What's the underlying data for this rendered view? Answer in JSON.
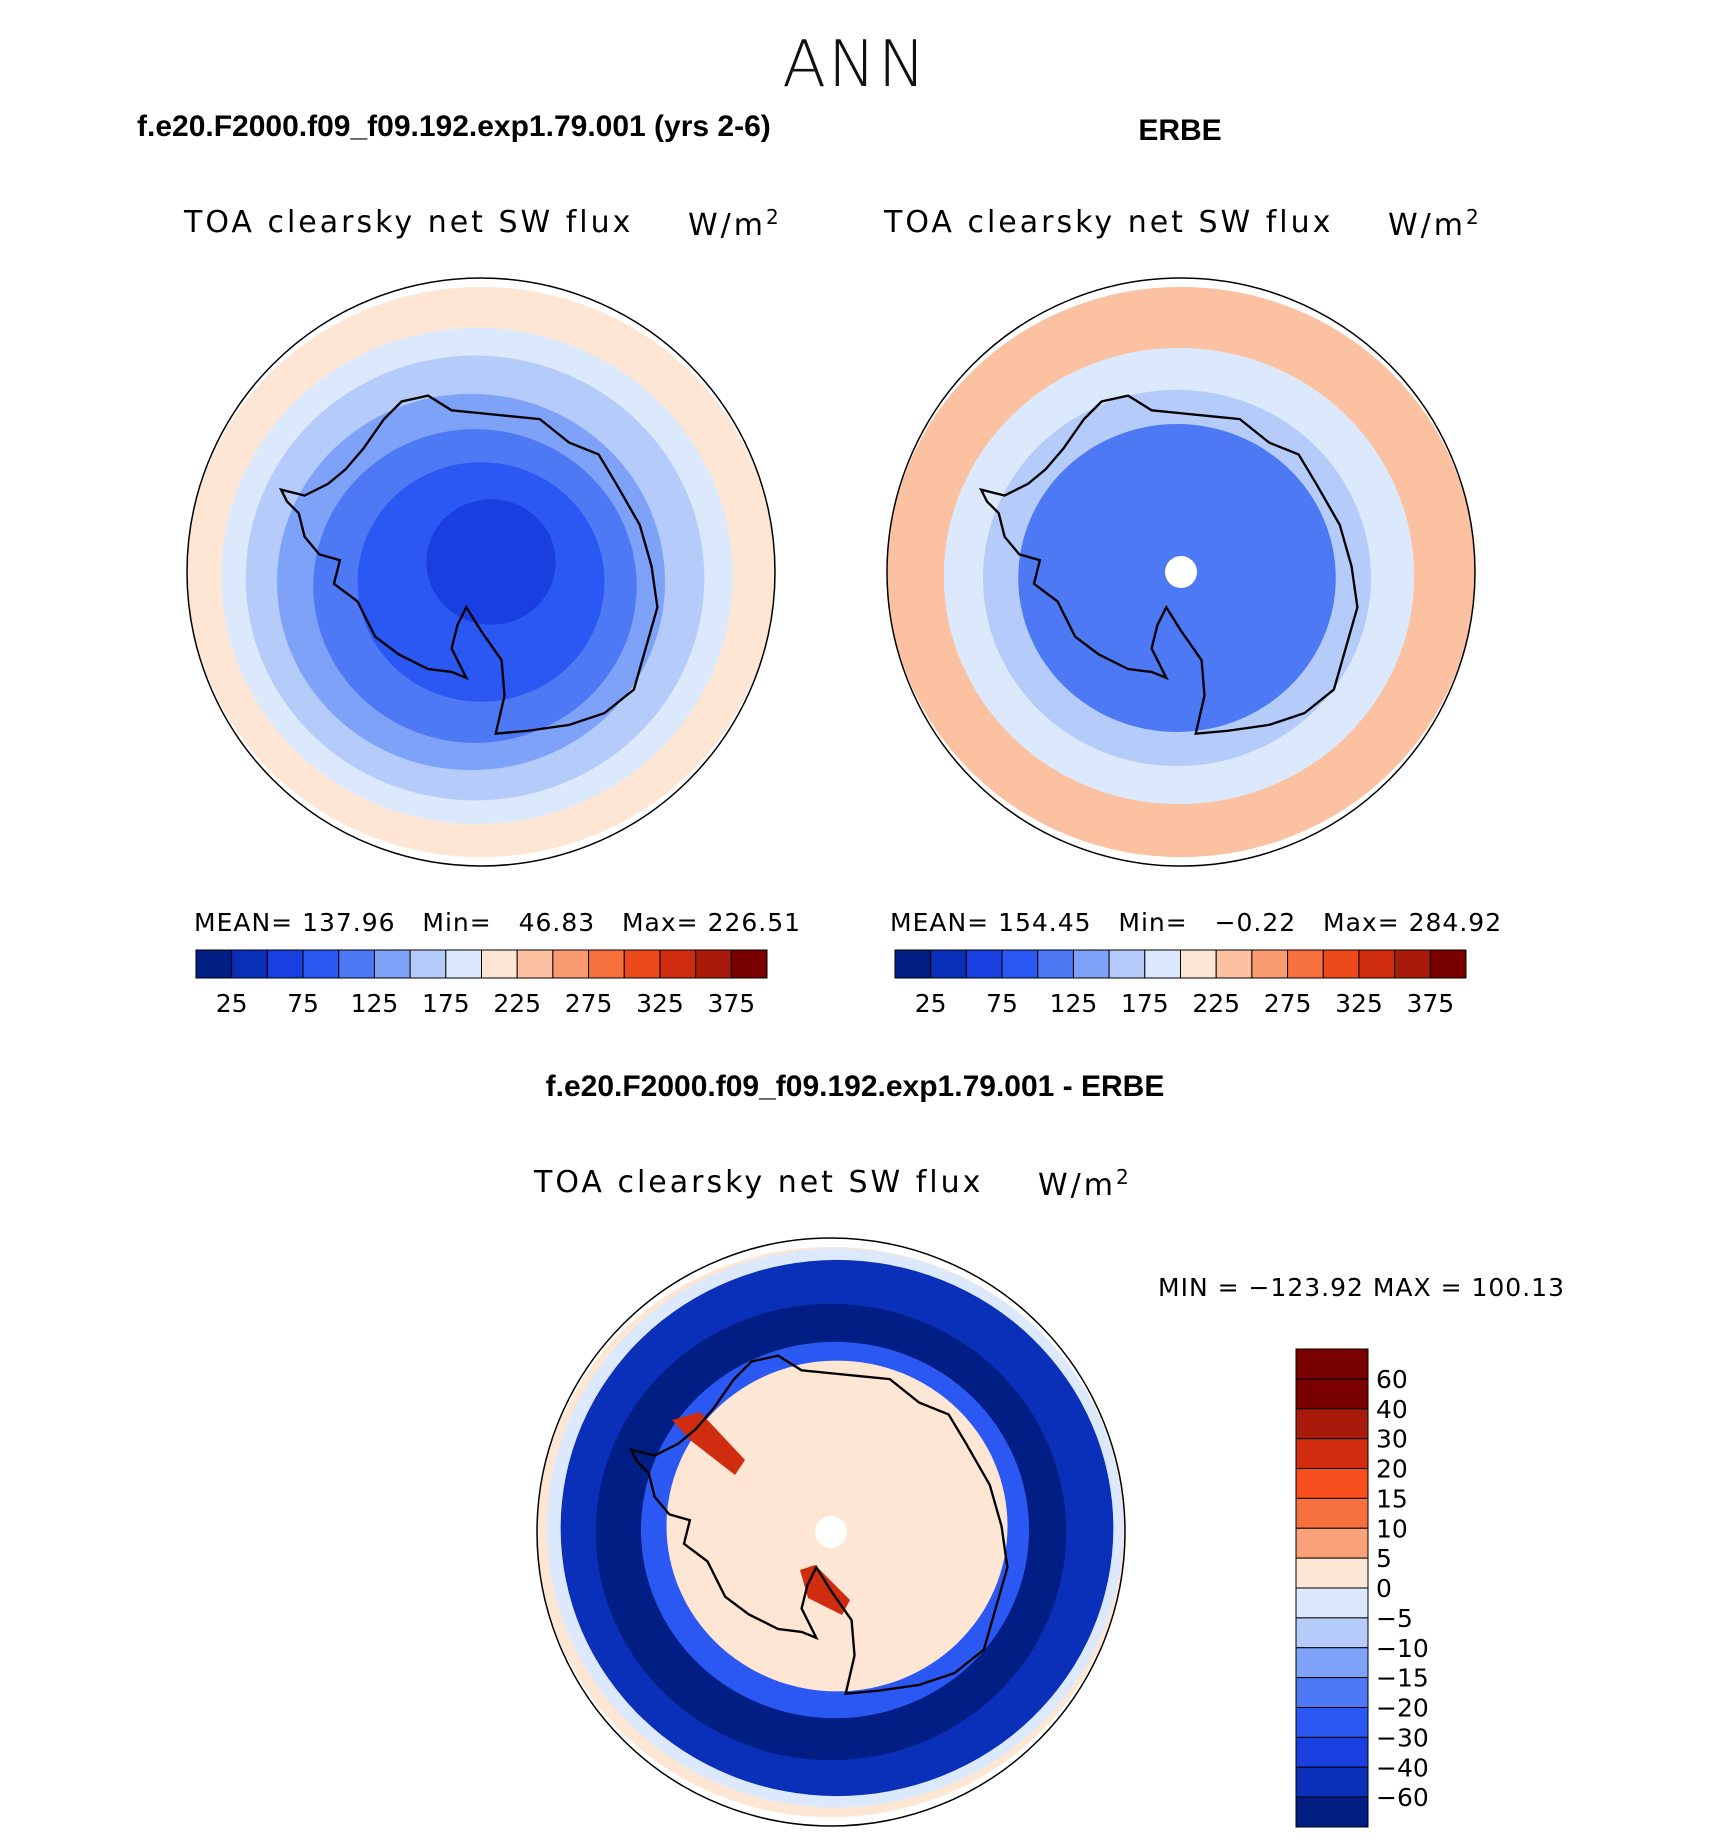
{
  "season": "ANN",
  "panels": {
    "model": {
      "case_title": "f.e20.F2000.f09_f09.192.exp1.79.001 (yrs 2-6)",
      "variable": "TOA clearsky net SW flux",
      "units": "W/m",
      "units_exp": "2",
      "mean_label": "MEAN=",
      "mean": "137.96",
      "min_label": "Min=",
      "min": "46.83",
      "max_label": "Max=",
      "max": "226.51"
    },
    "obs": {
      "case_title": "ERBE",
      "variable": "TOA clearsky net SW flux",
      "units": "W/m",
      "units_exp": "2",
      "mean_label": "MEAN=",
      "mean": "154.45",
      "min_label": "Min=",
      "min": "−0.22",
      "max_label": "Max=",
      "max": "284.92"
    },
    "diff": {
      "case_title": "f.e20.F2000.f09_f09.192.exp1.79.001 - ERBE",
      "variable": "TOA clearsky net SW flux",
      "units": "W/m",
      "units_exp": "2",
      "minmax": "MIN = −123.92 MAX = 100.13"
    }
  },
  "chart_data": [
    {
      "type": "heatmap",
      "projection": "south-polar-stereographic",
      "title": "TOA clearsky net SW flux",
      "units": "W/m^2",
      "case": "f.e20.F2000.f09_f09.192.exp1.79.001 (yrs 2-6)",
      "mean": 137.96,
      "min": 46.83,
      "max": 226.51,
      "colorbar_levels": [
        25,
        50,
        75,
        100,
        125,
        150,
        175,
        200,
        225,
        250,
        275,
        300,
        325,
        350,
        375
      ],
      "colorbar_tick_labels": [
        "25",
        "75",
        "125",
        "175",
        "225",
        "275",
        "325",
        "375"
      ],
      "colorbar_colors": [
        "#001e84",
        "#0a2fb8",
        "#1a3fe0",
        "#2b58f2",
        "#4d79f5",
        "#7fa2f9",
        "#b5ccfa",
        "#dce9fc",
        "#fde6d3",
        "#fcc1a0",
        "#f99a70",
        "#f7713f",
        "#ed4a1c",
        "#d02c10",
        "#a81b0a",
        "#7a0000"
      ],
      "field_rings": [
        {
          "value": 210
        },
        {
          "value": 180
        },
        {
          "value": 160
        },
        {
          "value": 130
        },
        {
          "value": 110
        },
        {
          "value": 90
        },
        {
          "value": 60
        }
      ]
    },
    {
      "type": "heatmap",
      "projection": "south-polar-stereographic",
      "title": "TOA clearsky net SW flux",
      "units": "W/m^2",
      "case": "ERBE",
      "mean": 154.45,
      "min": -0.22,
      "max": 284.92,
      "colorbar_levels": [
        25,
        50,
        75,
        100,
        125,
        150,
        175,
        200,
        225,
        250,
        275,
        300,
        325,
        350,
        375
      ],
      "colorbar_tick_labels": [
        "25",
        "75",
        "125",
        "175",
        "225",
        "275",
        "325",
        "375"
      ],
      "colorbar_colors": [
        "#001e84",
        "#0a2fb8",
        "#1a3fe0",
        "#2b58f2",
        "#4d79f5",
        "#7fa2f9",
        "#b5ccfa",
        "#dce9fc",
        "#fde6d3",
        "#fcc1a0",
        "#f99a70",
        "#f7713f",
        "#ed4a1c",
        "#d02c10",
        "#a81b0a",
        "#7a0000"
      ],
      "field_rings": [
        {
          "value": 235
        },
        {
          "value": 190
        },
        {
          "value": 170
        },
        {
          "value": 110
        }
      ]
    },
    {
      "type": "heatmap",
      "projection": "south-polar-stereographic",
      "title": "TOA clearsky net SW flux",
      "units": "W/m^2",
      "case": "f.e20.F2000.f09_f09.192.exp1.79.001 - ERBE",
      "min": -123.92,
      "max": 100.13,
      "colorbar_levels": [
        60,
        40,
        30,
        20,
        15,
        10,
        5,
        0,
        -5,
        -10,
        -15,
        -20,
        -30,
        -40,
        -60
      ],
      "colorbar_tick_labels": [
        "60",
        "40",
        "30",
        "20",
        "15",
        "10",
        "5",
        "0",
        "−5",
        "−10",
        "−15",
        "−20",
        "−30",
        "−40",
        "−60"
      ],
      "colorbar_colors": [
        "#7a0000",
        "#a81b0a",
        "#d02c10",
        "#f7501e",
        "#f7713f",
        "#f9a27a",
        "#fde6d3",
        "#dce9fc",
        "#b5ccfa",
        "#7fa2f9",
        "#4d79f5",
        "#2b58f2",
        "#1a3fe0",
        "#0a2fb8",
        "#001e84"
      ],
      "field_rings": [
        {
          "value": 2
        },
        {
          "value": -2
        },
        {
          "value": -50
        },
        {
          "value": -70
        },
        {
          "value": -30
        },
        {
          "value": 3
        }
      ]
    }
  ]
}
